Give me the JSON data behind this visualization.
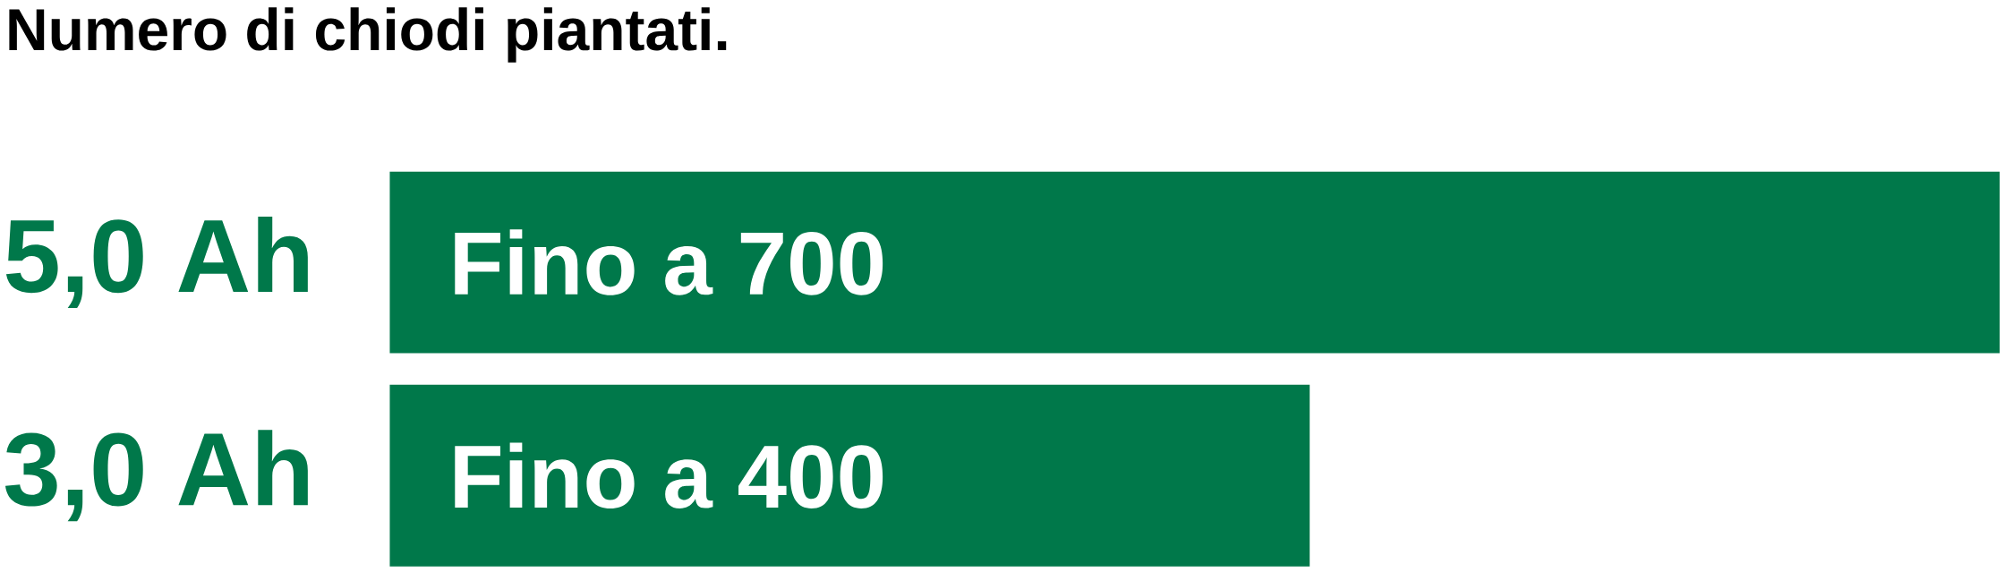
{
  "chart_data": {
    "type": "bar",
    "orientation": "horizontal",
    "title": "Numero di chiodi piantati.",
    "categories": [
      "5,0 Ah",
      "3,0 Ah"
    ],
    "values": [
      700,
      400
    ],
    "value_labels": [
      "Fino a 700",
      "Fino a 400"
    ],
    "color": "#00784a",
    "xlim": [
      0,
      700
    ],
    "tick_labels": "y"
  }
}
